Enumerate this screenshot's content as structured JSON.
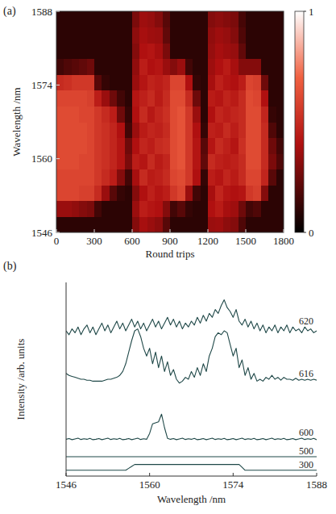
{
  "chart_data": [
    {
      "type": "heatmap",
      "panel_label": "(a)",
      "xlabel": "Round trips",
      "ylabel": "Wavelength /nm",
      "xlim": [
        0,
        1800
      ],
      "xticks": [
        0,
        300,
        600,
        900,
        1200,
        1500,
        1800
      ],
      "ylim": [
        1546,
        1588
      ],
      "yticks": [
        1546,
        1560,
        1574,
        1588
      ],
      "colorbar": {
        "range": [
          0,
          1
        ],
        "ticks": [
          0,
          1
        ]
      },
      "x": [
        30,
        90,
        150,
        210,
        270,
        330,
        390,
        450,
        510,
        570,
        630,
        690,
        750,
        810,
        870,
        930,
        990,
        1050,
        1110,
        1170,
        1230,
        1290,
        1350,
        1410,
        1470,
        1530,
        1590,
        1650,
        1710,
        1770
      ],
      "y": [
        1547.5,
        1550.5,
        1553.5,
        1556.5,
        1559.5,
        1562.5,
        1565.5,
        1568.5,
        1571.5,
        1574.5,
        1577.5,
        1580.5,
        1583.5,
        1586.5
      ],
      "z": [
        [
          0.1,
          0.35,
          0.6,
          0.6,
          0.62,
          0.62,
          0.62,
          0.62,
          0.6,
          0.5,
          0.15,
          0.1,
          0.1,
          0.1
        ],
        [
          0.1,
          0.35,
          0.6,
          0.6,
          0.62,
          0.62,
          0.62,
          0.62,
          0.6,
          0.52,
          0.18,
          0.1,
          0.1,
          0.1
        ],
        [
          0.1,
          0.33,
          0.6,
          0.6,
          0.62,
          0.62,
          0.62,
          0.62,
          0.6,
          0.55,
          0.2,
          0.1,
          0.1,
          0.1
        ],
        [
          0.1,
          0.3,
          0.58,
          0.6,
          0.6,
          0.62,
          0.62,
          0.6,
          0.6,
          0.55,
          0.22,
          0.1,
          0.1,
          0.1
        ],
        [
          0.1,
          0.28,
          0.58,
          0.6,
          0.6,
          0.6,
          0.6,
          0.6,
          0.58,
          0.55,
          0.25,
          0.1,
          0.1,
          0.1
        ],
        [
          0.1,
          0.15,
          0.5,
          0.55,
          0.55,
          0.55,
          0.55,
          0.55,
          0.45,
          0.2,
          0.1,
          0.1,
          0.1,
          0.1
        ],
        [
          0.1,
          0.1,
          0.35,
          0.5,
          0.52,
          0.52,
          0.52,
          0.5,
          0.35,
          0.12,
          0.1,
          0.1,
          0.1,
          0.1
        ],
        [
          0.1,
          0.1,
          0.2,
          0.45,
          0.48,
          0.48,
          0.48,
          0.45,
          0.25,
          0.1,
          0.1,
          0.1,
          0.1,
          0.1
        ],
        [
          0.1,
          0.1,
          0.12,
          0.3,
          0.42,
          0.42,
          0.4,
          0.25,
          0.15,
          0.1,
          0.1,
          0.1,
          0.1,
          0.1
        ],
        [
          0.1,
          0.1,
          0.1,
          0.15,
          0.28,
          0.25,
          0.15,
          0.12,
          0.1,
          0.1,
          0.1,
          0.1,
          0.1,
          0.1
        ],
        [
          0.3,
          0.35,
          0.3,
          0.38,
          0.45,
          0.4,
          0.35,
          0.4,
          0.42,
          0.35,
          0.33,
          0.3,
          0.32,
          0.28
        ],
        [
          0.38,
          0.45,
          0.4,
          0.5,
          0.42,
          0.48,
          0.44,
          0.5,
          0.46,
          0.42,
          0.45,
          0.4,
          0.38,
          0.36
        ],
        [
          0.35,
          0.42,
          0.46,
          0.44,
          0.5,
          0.45,
          0.48,
          0.43,
          0.5,
          0.47,
          0.4,
          0.42,
          0.36,
          0.34
        ],
        [
          0.32,
          0.4,
          0.42,
          0.46,
          0.44,
          0.5,
          0.46,
          0.48,
          0.44,
          0.45,
          0.42,
          0.38,
          0.35,
          0.3
        ],
        [
          0.2,
          0.3,
          0.45,
          0.5,
          0.48,
          0.52,
          0.5,
          0.52,
          0.5,
          0.48,
          0.35,
          0.28,
          0.22,
          0.2
        ],
        [
          0.1,
          0.15,
          0.55,
          0.6,
          0.62,
          0.62,
          0.62,
          0.62,
          0.62,
          0.6,
          0.3,
          0.1,
          0.1,
          0.1
        ],
        [
          0.1,
          0.2,
          0.6,
          0.62,
          0.65,
          0.65,
          0.65,
          0.65,
          0.62,
          0.6,
          0.35,
          0.1,
          0.1,
          0.1
        ],
        [
          0.1,
          0.12,
          0.35,
          0.55,
          0.55,
          0.55,
          0.55,
          0.55,
          0.5,
          0.4,
          0.15,
          0.1,
          0.1,
          0.1
        ],
        [
          0.1,
          0.1,
          0.15,
          0.4,
          0.42,
          0.42,
          0.4,
          0.35,
          0.25,
          0.12,
          0.1,
          0.1,
          0.1,
          0.1
        ],
        [
          0.1,
          0.1,
          0.1,
          0.12,
          0.22,
          0.2,
          0.12,
          0.1,
          0.1,
          0.1,
          0.1,
          0.1,
          0.1,
          0.1
        ],
        [
          0.35,
          0.4,
          0.38,
          0.45,
          0.5,
          0.42,
          0.46,
          0.4,
          0.44,
          0.38,
          0.36,
          0.34,
          0.33,
          0.3
        ],
        [
          0.36,
          0.44,
          0.48,
          0.42,
          0.46,
          0.5,
          0.44,
          0.48,
          0.42,
          0.46,
          0.4,
          0.38,
          0.36,
          0.32
        ],
        [
          0.32,
          0.38,
          0.42,
          0.48,
          0.44,
          0.46,
          0.5,
          0.45,
          0.47,
          0.42,
          0.44,
          0.36,
          0.34,
          0.3
        ],
        [
          0.3,
          0.36,
          0.4,
          0.44,
          0.46,
          0.42,
          0.45,
          0.48,
          0.44,
          0.4,
          0.38,
          0.34,
          0.3,
          0.28
        ],
        [
          0.18,
          0.25,
          0.42,
          0.5,
          0.5,
          0.52,
          0.5,
          0.5,
          0.5,
          0.45,
          0.3,
          0.22,
          0.18,
          0.16
        ],
        [
          0.1,
          0.15,
          0.55,
          0.6,
          0.62,
          0.62,
          0.62,
          0.62,
          0.62,
          0.6,
          0.3,
          0.1,
          0.1,
          0.1
        ],
        [
          0.1,
          0.18,
          0.58,
          0.6,
          0.62,
          0.62,
          0.62,
          0.62,
          0.6,
          0.58,
          0.3,
          0.1,
          0.1,
          0.1
        ],
        [
          0.1,
          0.1,
          0.3,
          0.48,
          0.5,
          0.5,
          0.5,
          0.48,
          0.4,
          0.25,
          0.1,
          0.1,
          0.1,
          0.1
        ],
        [
          0.1,
          0.1,
          0.1,
          0.2,
          0.28,
          0.25,
          0.18,
          0.12,
          0.1,
          0.1,
          0.1,
          0.1,
          0.1,
          0.1
        ],
        [
          0.1,
          0.1,
          0.1,
          0.1,
          0.18,
          0.15,
          0.1,
          0.1,
          0.1,
          0.1,
          0.1,
          0.1,
          0.1,
          0.1
        ]
      ]
    },
    {
      "type": "line",
      "panel_label": "(b)",
      "xlabel": "Wavelength /nm",
      "ylabel": "Intensity /arb. units",
      "xlim": [
        1546,
        1588
      ],
      "xticks": [
        1546,
        1560,
        1574,
        1588
      ],
      "ylim": [
        0,
        100
      ],
      "tick_labels": "x",
      "color": "#1f4848",
      "x": [
        1546,
        1546.5,
        1547,
        1547.5,
        1548,
        1548.5,
        1549,
        1549.5,
        1550,
        1550.5,
        1551,
        1551.5,
        1552,
        1552.5,
        1553,
        1553.5,
        1554,
        1554.5,
        1555,
        1555.5,
        1556,
        1556.5,
        1557,
        1557.5,
        1558,
        1558.5,
        1559,
        1559.5,
        1560,
        1560.5,
        1561,
        1561.5,
        1562,
        1562.5,
        1563,
        1563.5,
        1564,
        1564.5,
        1565,
        1565.5,
        1566,
        1566.5,
        1567,
        1567.5,
        1568,
        1568.5,
        1569,
        1569.5,
        1570,
        1570.5,
        1571,
        1571.5,
        1572,
        1572.5,
        1573,
        1573.5,
        1574,
        1574.5,
        1575,
        1575.5,
        1576,
        1576.5,
        1577,
        1577.5,
        1578,
        1578.5,
        1579,
        1579.5,
        1580,
        1580.5,
        1581,
        1581.5,
        1582,
        1582.5,
        1583,
        1583.5,
        1584,
        1584.5,
        1585,
        1585.5,
        1586,
        1586.5,
        1587,
        1587.5,
        1588
      ],
      "series": [
        {
          "name": "620",
          "values": [
            75,
            73,
            76,
            74,
            77,
            73,
            76,
            78,
            74,
            77,
            73,
            76,
            79,
            75,
            78,
            74,
            77,
            80,
            76,
            79,
            75,
            78,
            81,
            77,
            80,
            76,
            79,
            75,
            78,
            81,
            77,
            80,
            76,
            79,
            82,
            78,
            81,
            77,
            80,
            76,
            79,
            77,
            80,
            78,
            82,
            79,
            83,
            80,
            84,
            82,
            86,
            84,
            88,
            91,
            87,
            85,
            82,
            86,
            80,
            78,
            81,
            77,
            80,
            76,
            79,
            75,
            78,
            74,
            77,
            75,
            78,
            74,
            77,
            75,
            78,
            74,
            77,
            75,
            76,
            74,
            77,
            75,
            76,
            74,
            75
          ]
        },
        {
          "name": "616",
          "values": [
            53,
            52,
            51.5,
            51,
            50.5,
            50,
            50,
            49.5,
            49.5,
            49,
            49,
            49,
            49,
            49.5,
            50,
            50,
            50.5,
            51,
            52,
            54,
            58,
            64,
            70,
            75,
            76,
            72,
            66,
            62,
            66,
            58,
            64,
            56,
            62,
            54,
            59,
            52,
            55,
            50,
            48,
            49,
            51,
            50,
            54,
            51,
            56,
            52,
            58,
            54,
            62,
            66,
            72,
            74,
            73,
            75,
            74,
            68,
            62,
            66,
            56,
            60,
            52,
            56,
            50,
            53,
            49,
            50,
            49,
            51,
            50,
            52,
            50,
            51,
            49.5,
            51,
            50,
            50,
            49.5,
            50.5,
            49.5,
            50,
            49.5,
            50,
            49.5,
            50,
            49.5
          ]
        },
        {
          "name": "600",
          "values": [
            19,
            19.4,
            18.8,
            19.2,
            19.6,
            18.9,
            19.3,
            19,
            19.5,
            18.8,
            19,
            19.4,
            18.8,
            19.2,
            19.6,
            18.9,
            19.3,
            19,
            19.5,
            18.8,
            19,
            19.4,
            18.8,
            19.2,
            19.6,
            18.9,
            19.3,
            19,
            22,
            27,
            27.5,
            28,
            32,
            25,
            19.5,
            19,
            19.4,
            18.8,
            19.2,
            19.6,
            18.9,
            19.3,
            19,
            19.5,
            18.8,
            19,
            19.4,
            18.8,
            19.2,
            19.6,
            18.9,
            19.3,
            19,
            19.5,
            18.8,
            19,
            19.4,
            18.8,
            19.2,
            19.6,
            18.9,
            19.3,
            19,
            19.5,
            18.8,
            19,
            19.4,
            18.8,
            19.2,
            19.6,
            18.9,
            19.3,
            19,
            19.5,
            18.8,
            19,
            19.4,
            18.8,
            19.2,
            19.6,
            18.9,
            19.3,
            19,
            19.5,
            18.8
          ]
        },
        {
          "name": "500",
          "values": [
            10,
            10,
            10,
            10,
            10,
            10,
            10,
            10,
            10,
            10,
            10,
            10,
            10,
            10,
            10,
            10,
            10,
            10,
            10,
            10,
            10,
            10,
            10,
            10,
            10,
            10,
            10,
            10,
            10,
            10,
            10,
            10,
            10,
            10,
            10,
            10,
            10,
            10,
            10,
            10,
            10,
            10,
            10,
            10,
            10,
            10,
            10,
            10,
            10,
            10,
            10,
            10,
            10,
            10,
            10,
            10,
            10,
            10,
            10,
            10,
            10,
            10,
            10,
            10,
            10,
            10,
            10,
            10,
            10,
            10,
            10,
            10,
            10,
            10,
            10,
            10,
            10,
            10,
            10,
            10,
            10,
            10,
            10,
            10,
            10
          ]
        },
        {
          "name": "300",
          "values": [
            3,
            3,
            3,
            3,
            3,
            3,
            3,
            3,
            3,
            3,
            3,
            3,
            3,
            3,
            3,
            3,
            3,
            3,
            3,
            3,
            3,
            4,
            5,
            6,
            6,
            6,
            6,
            6,
            6,
            6,
            6,
            6,
            6,
            6,
            6,
            6,
            6,
            6,
            6,
            6,
            6,
            6,
            6,
            6,
            6,
            6,
            6,
            6,
            6,
            6,
            6,
            6,
            6,
            6,
            6,
            6,
            6,
            6,
            6,
            4.5,
            3,
            3,
            3,
            3,
            3,
            3,
            3,
            3,
            3,
            3,
            3,
            3,
            3,
            3,
            3,
            3,
            3,
            3,
            3,
            3,
            3,
            3,
            3,
            3,
            3
          ]
        }
      ]
    }
  ]
}
